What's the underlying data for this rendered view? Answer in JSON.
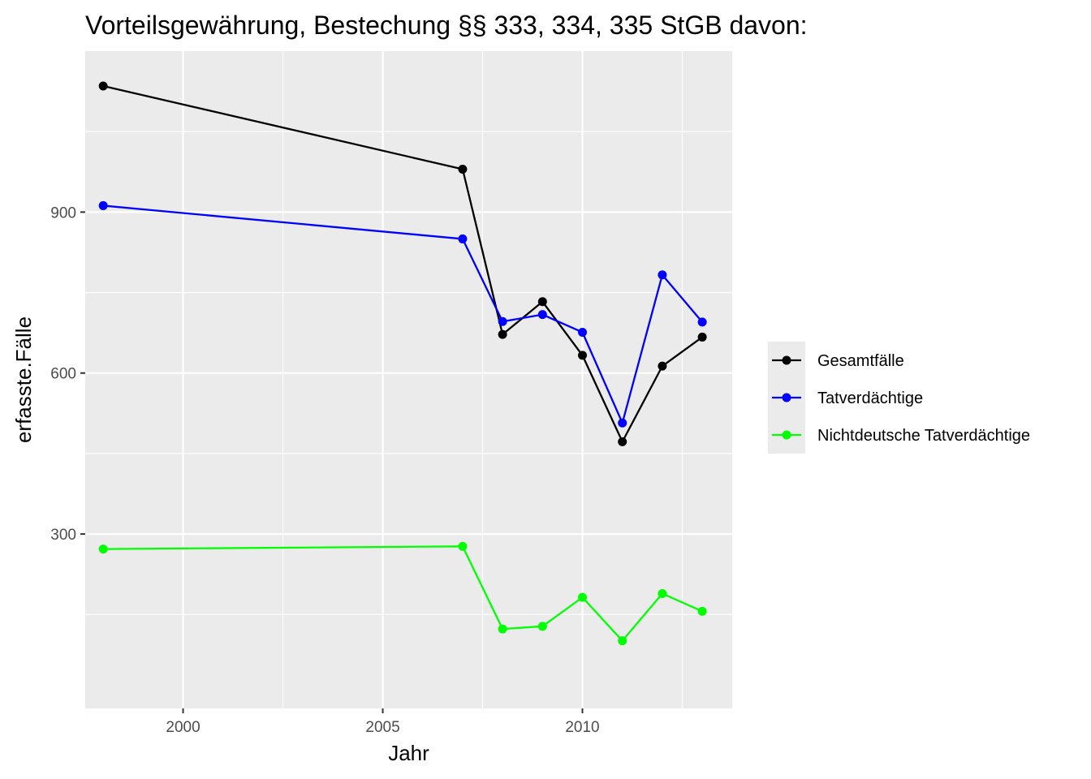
{
  "chart_data": {
    "type": "line",
    "title": "Vorteilsgewährung, Bestechung §§ 333, 334, 335 StGB davon:",
    "xlabel": "Jahr",
    "ylabel": "erfasste.Fälle",
    "x": [
      1998,
      2007,
      2008,
      2009,
      2010,
      2011,
      2012,
      2013
    ],
    "xlim": [
      1997.55,
      2013.75
    ],
    "ylim": [
      -25,
      1200
    ],
    "x_ticks": [
      2000,
      2005,
      2010
    ],
    "x_tick_labels": [
      "2000",
      "2005",
      "2010"
    ],
    "y_ticks": [
      300,
      600,
      900
    ],
    "y_tick_labels": [
      "300",
      "600",
      "900"
    ],
    "grid": true,
    "legend_position": "right",
    "series": [
      {
        "name": "Gesamtfälle",
        "color": "#000000",
        "values": [
          1135,
          980,
          672,
          733,
          633,
          472,
          613,
          667
        ]
      },
      {
        "name": "Tatverdächtige",
        "color": "#0000ff",
        "values": [
          912,
          850,
          696,
          709,
          676,
          507,
          783,
          695
        ]
      },
      {
        "name": "Nichtdeutsche Tatverdächtige",
        "color": "#00ff00",
        "values": [
          272,
          277,
          123,
          128,
          182,
          101,
          189,
          156
        ]
      }
    ]
  }
}
